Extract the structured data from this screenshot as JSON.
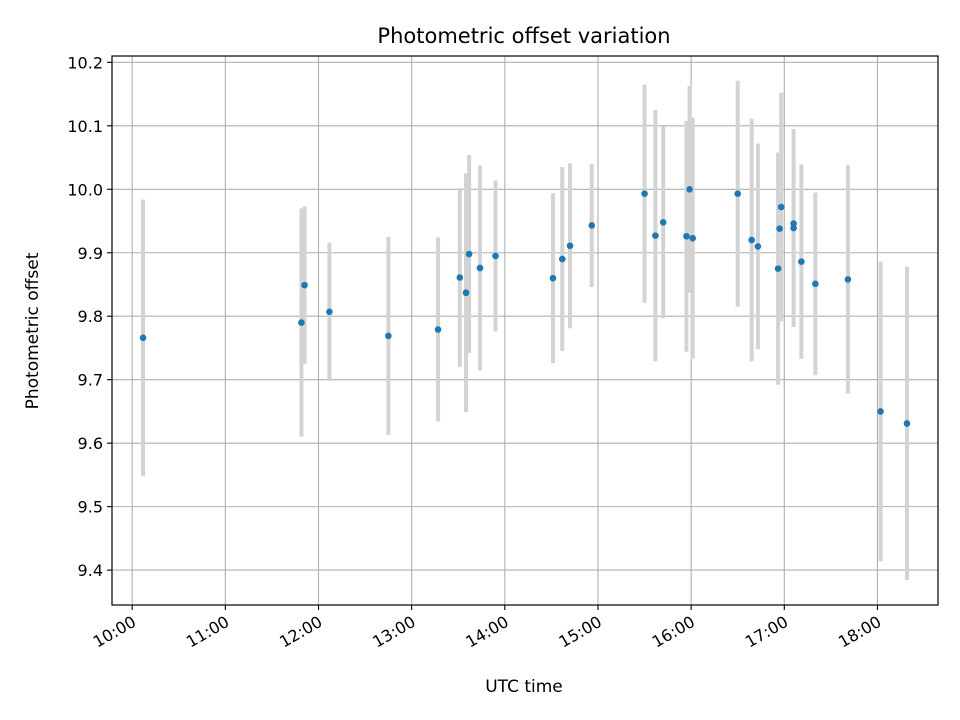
{
  "chart_data": {
    "type": "scatter",
    "title": "Photometric offset variation",
    "xlabel": "UTC time",
    "ylabel": "Photometric offset",
    "x_axis_kind": "time",
    "xlim": [
      "09:47",
      "18:39"
    ],
    "ylim": [
      9.345,
      10.21
    ],
    "grid": true,
    "legend": "none",
    "x_ticks": [
      "10:00",
      "11:00",
      "12:00",
      "13:00",
      "14:00",
      "15:00",
      "16:00",
      "17:00",
      "18:00"
    ],
    "y_ticks": [
      "9.4",
      "9.5",
      "9.6",
      "9.7",
      "9.8",
      "9.9",
      "10.0",
      "10.1",
      "10.2"
    ],
    "marker_color": "#1f77b4",
    "errorbar_color": "#d3d3d3",
    "points": [
      {
        "x": "10:07",
        "y": 9.766,
        "err": 0.218
      },
      {
        "x": "11:49",
        "y": 9.79,
        "err": 0.18
      },
      {
        "x": "11:51",
        "y": 9.849,
        "err": 0.124
      },
      {
        "x": "12:07",
        "y": 9.807,
        "err": 0.109
      },
      {
        "x": "12:45",
        "y": 9.769,
        "err": 0.156
      },
      {
        "x": "13:17",
        "y": 9.779,
        "err": 0.145
      },
      {
        "x": "13:31",
        "y": 9.861,
        "err": 0.141
      },
      {
        "x": "13:35",
        "y": 9.837,
        "err": 0.188
      },
      {
        "x": "13:37",
        "y": 9.898,
        "err": 0.156
      },
      {
        "x": "13:44",
        "y": 9.876,
        "err": 0.161
      },
      {
        "x": "13:54",
        "y": 9.895,
        "err": 0.119
      },
      {
        "x": "14:31",
        "y": 9.86,
        "err": 0.134
      },
      {
        "x": "14:37",
        "y": 9.89,
        "err": 0.145
      },
      {
        "x": "14:42",
        "y": 9.911,
        "err": 0.13
      },
      {
        "x": "14:56",
        "y": 9.943,
        "err": 0.097
      },
      {
        "x": "15:30",
        "y": 9.993,
        "err": 0.172
      },
      {
        "x": "15:37",
        "y": 9.927,
        "err": 0.198
      },
      {
        "x": "15:42",
        "y": 9.948,
        "err": 0.151
      },
      {
        "x": "15:57",
        "y": 9.926,
        "err": 0.182
      },
      {
        "x": "15:59",
        "y": 10.0,
        "err": 0.163
      },
      {
        "x": "16:01",
        "y": 9.923,
        "err": 0.19
      },
      {
        "x": "16:30",
        "y": 9.993,
        "err": 0.178
      },
      {
        "x": "16:39",
        "y": 9.92,
        "err": 0.191
      },
      {
        "x": "16:43",
        "y": 9.91,
        "err": 0.162
      },
      {
        "x": "16:56",
        "y": 9.875,
        "err": 0.183
      },
      {
        "x": "16:57",
        "y": 9.938,
        "err": 0.12
      },
      {
        "x": "16:58",
        "y": 9.972,
        "err": 0.18
      },
      {
        "x": "17:06",
        "y": 9.939,
        "err": 0.156
      },
      {
        "x": "17:06",
        "y": 9.946,
        "err": 0.054
      },
      {
        "x": "17:11",
        "y": 9.886,
        "err": 0.153
      },
      {
        "x": "17:20",
        "y": 9.851,
        "err": 0.144
      },
      {
        "x": "17:41",
        "y": 9.858,
        "err": 0.18
      },
      {
        "x": "18:02",
        "y": 9.65,
        "err": 0.236
      },
      {
        "x": "18:19",
        "y": 9.631,
        "err": 0.247
      }
    ]
  }
}
